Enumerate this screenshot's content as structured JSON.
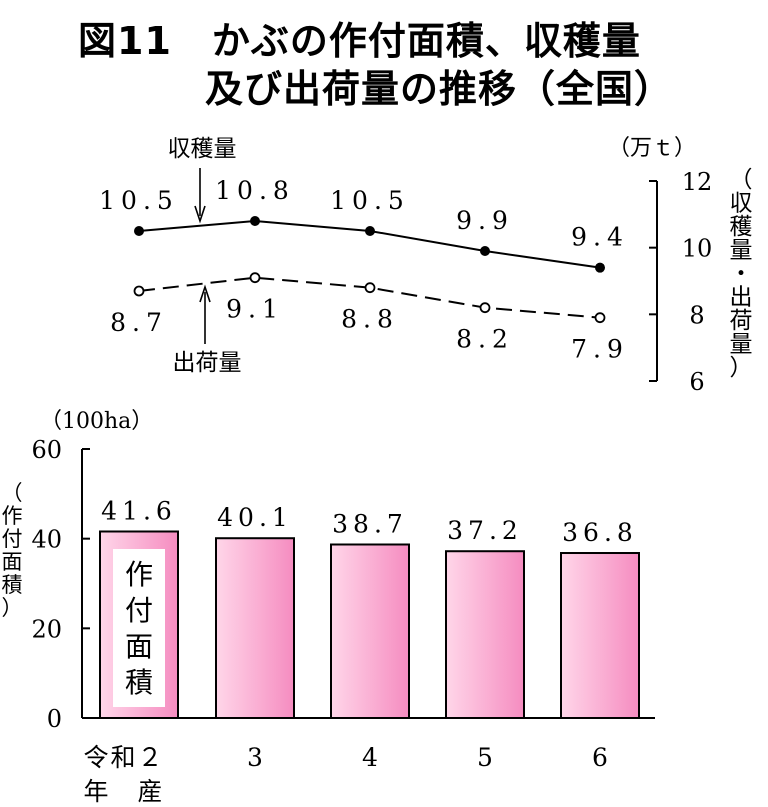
{
  "title": {
    "figure_label": "図11",
    "line1": "かぶの作付面積、収穫量",
    "line2": "及び出荷量の推移（全国）"
  },
  "chart_data": [
    {
      "type": "line",
      "categories": [
        "令和２年産",
        "3",
        "4",
        "5",
        "6"
      ],
      "series": [
        {
          "name": "収穫量",
          "values": [
            10.5,
            10.8,
            10.5,
            9.9,
            9.4
          ],
          "style": "solid",
          "marker": "filled-circle"
        },
        {
          "name": "出荷量",
          "values": [
            8.7,
            9.1,
            8.8,
            8.2,
            7.9
          ],
          "style": "dashed",
          "marker": "open-circle"
        }
      ],
      "unit": "（万ｔ）",
      "ylabel": "（収穫量・出荷量）",
      "ylim": [
        6,
        12
      ],
      "yticks": [
        6,
        8,
        10,
        12
      ],
      "y_axis_side": "right",
      "grid": false
    },
    {
      "type": "bar",
      "categories": [
        "令和２年産",
        "3",
        "4",
        "5",
        "6"
      ],
      "values": [
        41.6,
        40.1,
        38.7,
        37.2,
        36.8
      ],
      "labels": [
        "41.6",
        "40.1",
        "38.7",
        "37.2",
        "36.8"
      ],
      "series_name": "作付面積",
      "unit": "（100ha）",
      "ylabel": "（作付面積）",
      "ylim": [
        0,
        60
      ],
      "yticks": [
        0,
        20,
        40,
        60
      ],
      "bar_color": "#f9a8d0",
      "grid": false
    }
  ],
  "xaxis": {
    "first_line1": "令和２",
    "first_line2": "年　産",
    "rest": [
      "3",
      "4",
      "5",
      "6"
    ]
  }
}
